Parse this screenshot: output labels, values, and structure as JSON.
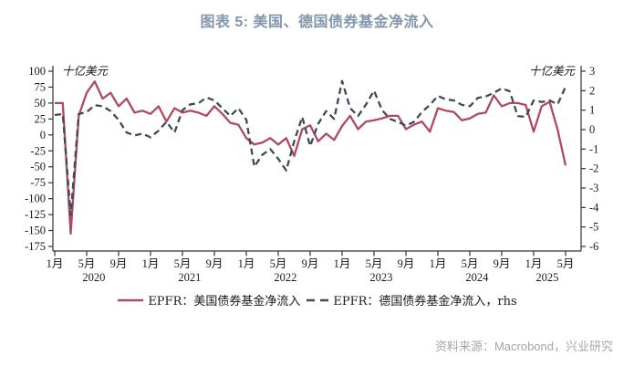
{
  "title": "图表 5: 美国、德国债券基金净流入",
  "source": {
    "text": "资料来源：Macrobond，兴业研究"
  },
  "colors": {
    "title": "#8296ac",
    "us_line": "#b04a5e",
    "de_line": "#3e4a5a",
    "axis": "#333333",
    "tick_text": "#1a1a1a",
    "source_text": "#a6a6a6"
  },
  "legend": {
    "us_label": "EPFR：美国债券基金净流入",
    "de_label": "EPFR：德国债券基金净流入，rhs"
  },
  "chart_data": {
    "type": "line",
    "title": "图表 5: 美国、德国债券基金净流入",
    "x_frequency": "monthly",
    "x_start": "2020-01",
    "x_end": "2025-05",
    "x_tick_step_months": 4,
    "x_tick_month_labels": [
      "1月",
      "5月",
      "9月"
    ],
    "years": [
      "2020",
      "2021",
      "2022",
      "2023",
      "2024",
      "2025"
    ],
    "grid": false,
    "legend_position": "bottom",
    "left_axis": {
      "unit_label": "十亿美元",
      "ticks": [
        100,
        75,
        50,
        25,
        0,
        -25,
        -50,
        -75,
        -100,
        -125,
        -150,
        -175
      ],
      "range": [
        -175,
        100
      ]
    },
    "right_axis": {
      "unit_label": "十亿美元",
      "ticks": [
        3,
        2,
        1,
        0,
        -1,
        -2,
        -3,
        -4,
        -5,
        -6
      ],
      "range": [
        -6,
        3
      ]
    },
    "series": [
      {
        "name": "EPFR：美国债券基金净流入",
        "axis": "left",
        "line_style": "solid",
        "color": "#b04a5e",
        "values": [
          50,
          50,
          -155,
          30,
          66,
          84,
          57,
          66,
          45,
          57,
          35,
          38,
          33,
          45,
          21,
          42,
          35,
          38,
          35,
          30,
          45,
          33,
          19,
          16,
          -5,
          -15,
          -12,
          -5,
          -15,
          -5,
          -33,
          9,
          15,
          -10,
          2,
          -8,
          14,
          30,
          9,
          21,
          23,
          26,
          30,
          30,
          9,
          16,
          21,
          5,
          42,
          38,
          36,
          23,
          26,
          33,
          35,
          62,
          45,
          50,
          50,
          47,
          5,
          45,
          52,
          8,
          -48
        ]
      },
      {
        "name": "EPFR：德国债券基金净流入，rhs",
        "axis": "right",
        "line_style": "dashed",
        "color": "#3e4a5a",
        "values": [
          0.75,
          0.8,
          -4.4,
          0.8,
          0.9,
          1.25,
          1.2,
          0.95,
          0.5,
          -0.15,
          -0.3,
          -0.2,
          -0.4,
          -0.05,
          0.4,
          -0.15,
          1.0,
          1.3,
          1.35,
          1.65,
          1.5,
          1.1,
          0.7,
          1.1,
          0.5,
          -1.9,
          -1.3,
          -1.0,
          -1.5,
          -2.1,
          -0.6,
          0.65,
          -0.85,
          0.3,
          0.95,
          0.55,
          2.5,
          1.1,
          0.7,
          1.3,
          2.0,
          1.0,
          0.55,
          0.4,
          0.2,
          0.4,
          0.9,
          1.27,
          1.73,
          1.55,
          1.5,
          1.27,
          1.2,
          1.63,
          1.7,
          1.89,
          2.12,
          1.97,
          0.7,
          0.65,
          1.5,
          1.42,
          1.5,
          1.3,
          2.2
        ]
      }
    ]
  }
}
